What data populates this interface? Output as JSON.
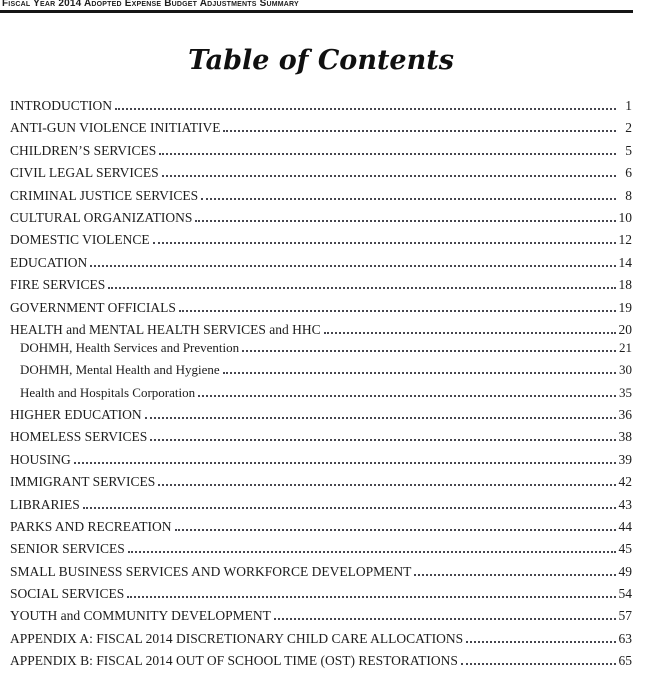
{
  "header": {
    "title": "Fiscal Year 2014 Adopted Expense Budget Adjustments Summary"
  },
  "toc": {
    "title": "Table of Contents",
    "entries": [
      {
        "label": "INTRODUCTION",
        "page": "1",
        "level": 0
      },
      {
        "label": "ANTI-GUN VIOLENCE INITIATIVE",
        "page": "2",
        "level": 0
      },
      {
        "label": "CHILDREN’S SERVICES",
        "page": "5",
        "level": 0
      },
      {
        "label": "CIVIL LEGAL SERVICES",
        "page": "6",
        "level": 0
      },
      {
        "label": "CRIMINAL JUSTICE SERVICES",
        "page": "8",
        "level": 0
      },
      {
        "label": "CULTURAL ORGANIZATIONS",
        "page": "10",
        "level": 0
      },
      {
        "label": "DOMESTIC VIOLENCE",
        "page": "12",
        "level": 0
      },
      {
        "label": "EDUCATION",
        "page": "14",
        "level": 0
      },
      {
        "label": "FIRE SERVICES",
        "page": "18",
        "level": 0
      },
      {
        "label": "GOVERNMENT OFFICIALS",
        "page": "19",
        "level": 0
      },
      {
        "label": "HEALTH and MENTAL HEALTH SERVICES and HHC",
        "page": "20",
        "level": 0
      },
      {
        "label": "DOHMH, Health Services and Prevention",
        "page": "21",
        "level": 1
      },
      {
        "label": "DOHMH, Mental Health and Hygiene",
        "page": "30",
        "level": 1
      },
      {
        "label": "Health and Hospitals Corporation",
        "page": "35",
        "level": 1
      },
      {
        "label": "HIGHER EDUCATION",
        "page": "36",
        "level": 0
      },
      {
        "label": "HOMELESS SERVICES",
        "page": "38",
        "level": 0
      },
      {
        "label": "HOUSING",
        "page": "39",
        "level": 0
      },
      {
        "label": "IMMIGRANT SERVICES",
        "page": "42",
        "level": 0
      },
      {
        "label": "LIBRARIES",
        "page": "43",
        "level": 0
      },
      {
        "label": "PARKS AND RECREATION",
        "page": "44",
        "level": 0
      },
      {
        "label": "SENIOR SERVICES",
        "page": "45",
        "level": 0
      },
      {
        "label": "SMALL BUSINESS SERVICES AND WORKFORCE DEVELOPMENT",
        "page": "49",
        "level": 0
      },
      {
        "label": "SOCIAL SERVICES",
        "page": "54",
        "level": 0
      },
      {
        "label": "YOUTH and COMMUNITY DEVELOPMENT",
        "page": "57",
        "level": 0
      },
      {
        "label": "APPENDIX A: FISCAL 2014 DISCRETIONARY CHILD CARE ALLOCATIONS",
        "page": "63",
        "level": 0
      },
      {
        "label": "APPENDIX B: FISCAL 2014 OUT OF SCHOOL TIME (OST) RESTORATIONS",
        "page": "65",
        "level": 0
      }
    ]
  },
  "colors": {
    "text": "#1c1c1c",
    "rule": "#151515",
    "background": "#ffffff",
    "leader_dots": "#46464e"
  }
}
